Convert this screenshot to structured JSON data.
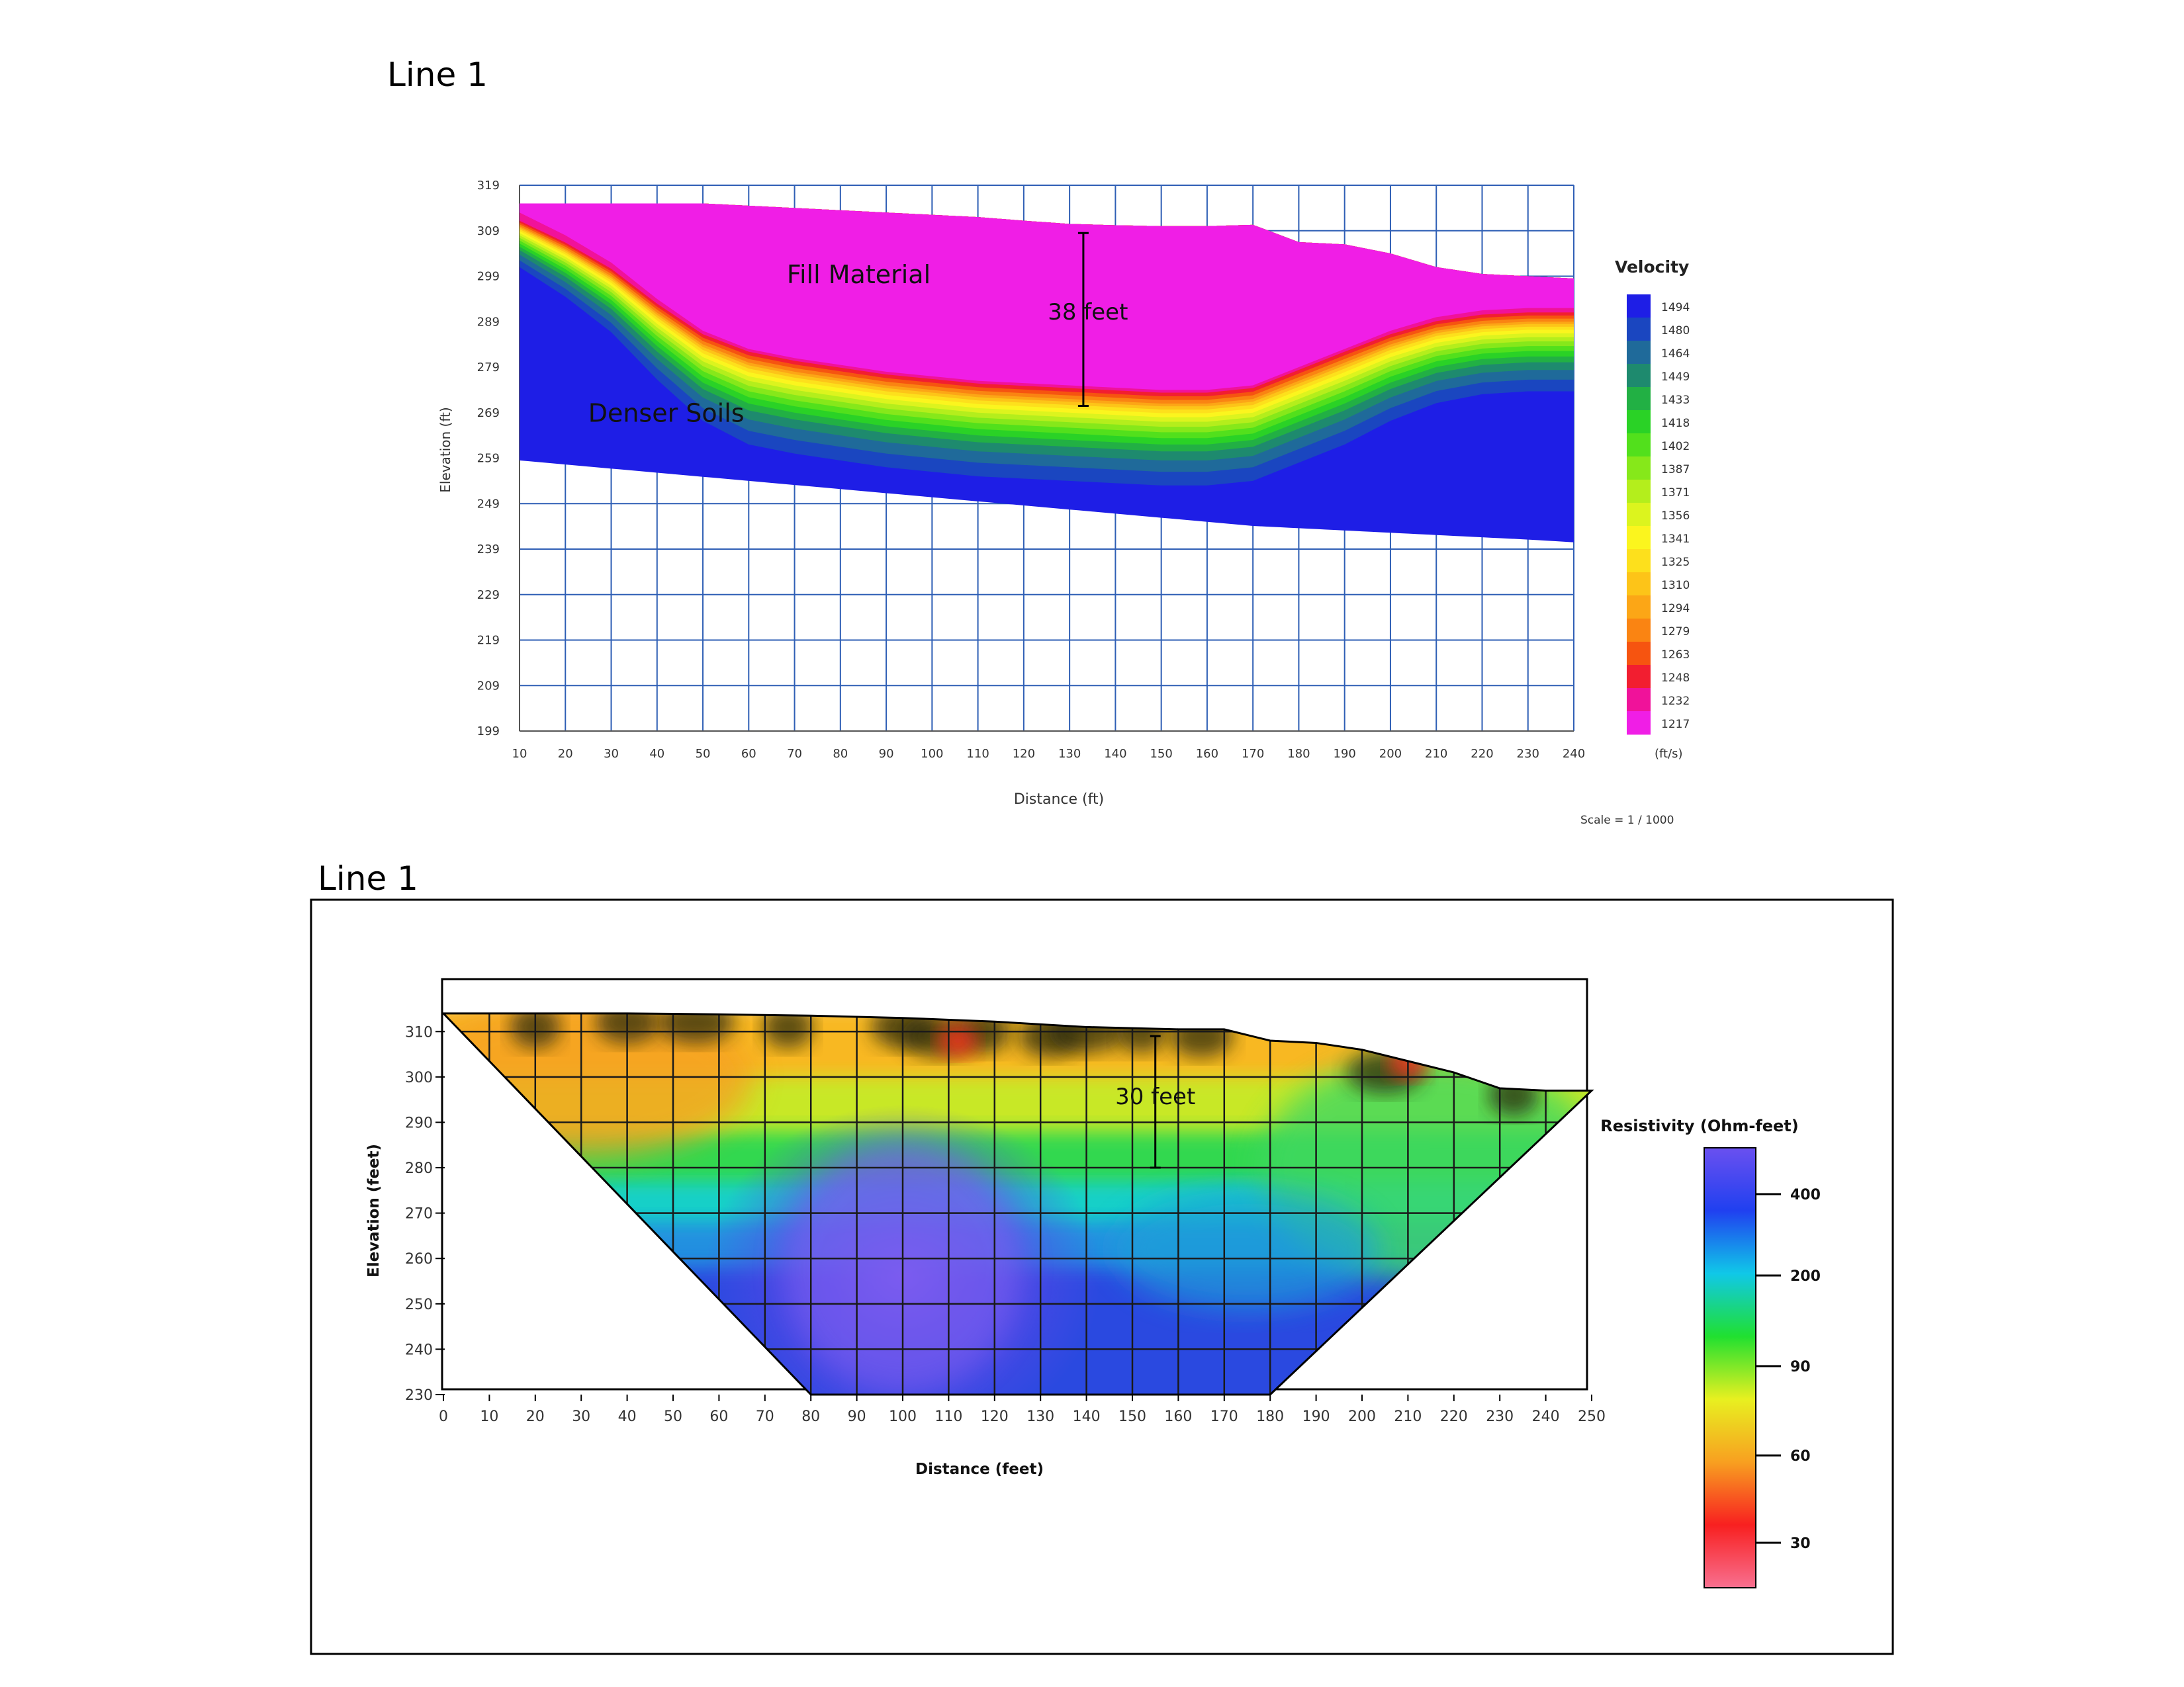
{
  "chart_data": [
    {
      "type": "heatmap",
      "panel_title": "Line 1",
      "xlabel": "Distance (ft)",
      "ylabel": "Elevation (ft)",
      "xlim": [
        10,
        240
      ],
      "ylim": [
        199,
        319
      ],
      "x_ticks": [
        10,
        20,
        30,
        40,
        50,
        60,
        70,
        80,
        90,
        100,
        110,
        120,
        130,
        140,
        150,
        160,
        170,
        180,
        190,
        200,
        210,
        220,
        230,
        240
      ],
      "y_ticks": [
        319,
        309,
        299,
        289,
        279,
        269,
        259,
        249,
        239,
        229,
        219,
        209,
        199
      ],
      "grid": true,
      "colorbar": {
        "title": "Velocity",
        "unit": "(ft/s)",
        "values": [
          1494,
          1480,
          1464,
          1449,
          1433,
          1418,
          1402,
          1387,
          1371,
          1356,
          1341,
          1325,
          1310,
          1294,
          1279,
          1263,
          1248,
          1232,
          1217
        ],
        "colors": [
          "#1e1ee6",
          "#1a46c0",
          "#1f6a9a",
          "#1e8a6e",
          "#22b044",
          "#2ad226",
          "#52e01c",
          "#86e81a",
          "#b4ee1c",
          "#dcf41e",
          "#fbf51e",
          "#fde01c",
          "#fdc418",
          "#fca616",
          "#fa8412",
          "#f65410",
          "#f21e30",
          "#f0129a",
          "#f01ee6"
        ]
      },
      "annotations": [
        {
          "text": "Fill Material",
          "x": 84,
          "y": 297.5
        },
        {
          "text": "38 feet",
          "x": 134,
          "y": 289.5
        },
        {
          "text": "Denser Soils",
          "x": 42,
          "y": 267
        }
      ],
      "thickness_marker": {
        "x": 133,
        "y_top": 308.5,
        "y_bottom": 270.5
      },
      "surface_profile": {
        "x": [
          10,
          20,
          30,
          40,
          50,
          60,
          70,
          80,
          90,
          100,
          110,
          120,
          130,
          140,
          150,
          160,
          170,
          180,
          190,
          200,
          210,
          220,
          230,
          240
        ],
        "top": [
          315,
          315,
          315,
          315,
          315,
          314.5,
          314,
          313.5,
          313,
          312.5,
          312,
          311.2,
          310.5,
          310.2,
          310,
          310,
          310.3,
          306.5,
          306,
          304,
          301,
          299.5,
          299,
          298.5
        ],
        "fill_bottom": [
          310,
          305,
          299,
          291,
          284,
          280,
          278,
          276.5,
          275,
          274,
          273,
          272.5,
          272,
          271.5,
          271,
          271,
          272,
          276,
          280,
          284,
          287,
          288.5,
          289,
          289
        ],
        "bottom": [
          258.5,
          257.6,
          256.7,
          255.8,
          254.9,
          254,
          253.1,
          252.2,
          251.3,
          250.4,
          249.5,
          248.6,
          247.7,
          246.8,
          245.9,
          245,
          244.1,
          243.6,
          243.1,
          242.6,
          242.1,
          241.6,
          241.1,
          240.5
        ]
      },
      "scale_note": "Scale = 1 / 1000"
    },
    {
      "type": "heatmap",
      "panel_title": "Line 1",
      "xlabel": "Distance (feet)",
      "ylabel": "Elevation (feet)",
      "xlim": [
        0,
        250
      ],
      "ylim": [
        230,
        315
      ],
      "x_ticks": [
        0,
        10,
        20,
        30,
        40,
        50,
        60,
        70,
        80,
        90,
        100,
        110,
        120,
        130,
        140,
        150,
        160,
        170,
        180,
        190,
        200,
        210,
        220,
        230,
        240,
        250
      ],
      "y_ticks": [
        310,
        300,
        290,
        280,
        270,
        260,
        250,
        240,
        230
      ],
      "grid": true,
      "colorbar": {
        "title": "Resistivity (Ohm-feet)",
        "tick_labels": [
          "400",
          "200",
          "90",
          "60",
          "30"
        ],
        "colors": [
          "#6a50f0",
          "#2040f0",
          "#10c8e8",
          "#20e030",
          "#e8f020",
          "#f8a020",
          "#f82020",
          "#f87090"
        ]
      },
      "annotations": [
        {
          "text": "30 feet",
          "x": 155,
          "y": 294
        }
      ],
      "thickness_marker": {
        "x": 155,
        "y_top": 309,
        "y_bottom": 280
      },
      "surface_profile": {
        "x": [
          0,
          20,
          40,
          60,
          80,
          100,
          120,
          140,
          160,
          170,
          180,
          190,
          200,
          210,
          220,
          230,
          240,
          250
        ],
        "top": [
          314,
          314,
          314,
          313.8,
          313.5,
          313,
          312.2,
          311,
          310.5,
          310.5,
          308,
          307.5,
          306,
          303.5,
          301,
          297.5,
          297,
          297
        ]
      },
      "section_bottom": {
        "x_left": 80,
        "x_right": 180,
        "y": 230
      }
    }
  ]
}
